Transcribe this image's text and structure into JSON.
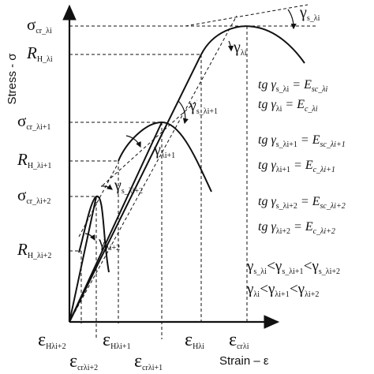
{
  "axes": {
    "y_title": "Stress - σ",
    "x_title": "Strain – ε"
  },
  "y_labels": [
    {
      "main": "σ",
      "sub": "cr_λi"
    },
    {
      "main": "R",
      "sub": "H_λi"
    },
    {
      "main": "σ",
      "sub": "cr_λi+1"
    },
    {
      "main": "R",
      "sub": "H_λi+1"
    },
    {
      "main": "σ",
      "sub": "cr_λi+2"
    },
    {
      "main": "R",
      "sub": "H_λi+2"
    }
  ],
  "x_labels_top": [
    {
      "main": "ε",
      "sub": "Hλi+2"
    },
    {
      "main": "ε",
      "sub": "Hλi+1"
    },
    {
      "main": "ε",
      "sub": "Hλi"
    },
    {
      "main": "ε",
      "sub": "crλi"
    }
  ],
  "x_labels_bottom": [
    {
      "main": "ε",
      "sub": "crλi+2"
    },
    {
      "main": "ε",
      "sub": "crλi+1"
    }
  ],
  "angle_labels": [
    {
      "main": "γ",
      "sub": "s_λi"
    },
    {
      "main": "γ",
      "sub": "λi"
    },
    {
      "main": "γ",
      "sub": "s_λi+1"
    },
    {
      "main": "γ",
      "sub": "λi+1"
    },
    {
      "main": "γ",
      "sub": "s_λi+2"
    },
    {
      "main": "γ",
      "sub": "λi+2"
    }
  ],
  "equations": [
    {
      "lhs": "tg γ",
      "lhs_sub": "s_λi",
      "eq": " = E",
      "rhs_sub": "sc_λi"
    },
    {
      "lhs": "tg γ",
      "lhs_sub": "λi",
      "eq": " = E",
      "rhs_sub": "c_λi"
    },
    {
      "lhs": "tg γ",
      "lhs_sub": "s_λi+1",
      "eq": " = E",
      "rhs_sub": "sc_λi+1"
    },
    {
      "lhs": "tg γ",
      "lhs_sub": "λi+1",
      "eq": " = E",
      "rhs_sub": "c_λi+1"
    },
    {
      "lhs": "tg γ",
      "lhs_sub": "s_λi+2",
      "eq": " = E",
      "rhs_sub": "sc_λi+2"
    },
    {
      "lhs": "tg γ",
      "lhs_sub": "λi+2",
      "eq": " = E",
      "rhs_sub": "c_λi+2"
    }
  ],
  "inequalities": [
    {
      "parts": [
        [
          "γ",
          "s_λi"
        ],
        [
          "<",
          ""
        ],
        [
          "γ",
          "s_λi+1"
        ],
        [
          "<",
          ""
        ],
        [
          "γ",
          "s_λi+2"
        ]
      ]
    },
    {
      "parts": [
        [
          "γ",
          "λi"
        ],
        [
          "<",
          ""
        ],
        [
          "γ",
          "λi+1"
        ],
        [
          "<",
          ""
        ],
        [
          "γ",
          "λi+2"
        ]
      ]
    }
  ]
}
